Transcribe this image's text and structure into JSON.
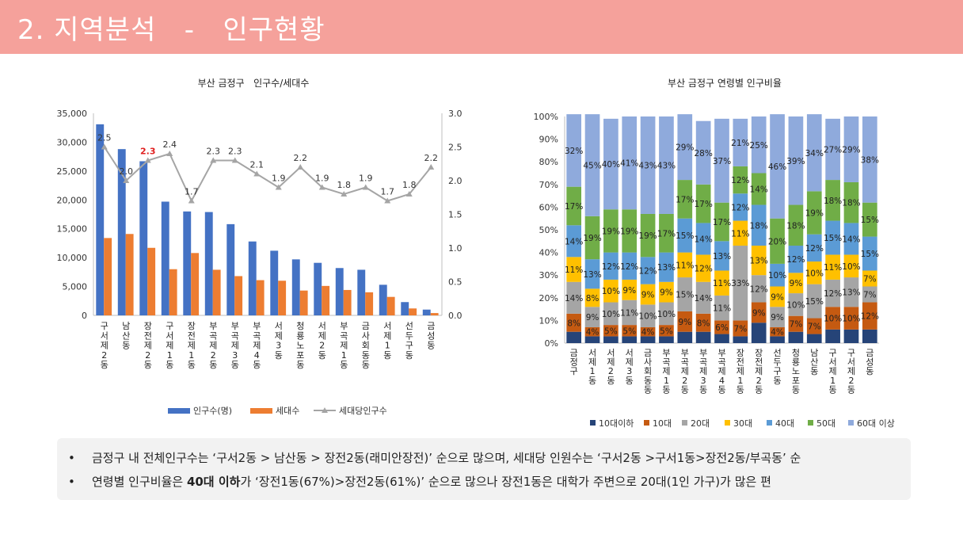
{
  "header": {
    "title": "2. 지역분석   -   인구현황"
  },
  "charts": {
    "left_title": "부산 금정구   인구수/세대수",
    "right_title": "부산 금정구 연령별 인구비율"
  },
  "chart_data": [
    {
      "type": "bar",
      "title": "부산 금정구   인구수/세대수",
      "categories": [
        "구서제2동",
        "남산동",
        "장전제2동",
        "구서제1동",
        "장전제1동",
        "부곡제2동",
        "부곡제3동",
        "부곡제4동",
        "서제3동",
        "청룡노포동",
        "서제2동",
        "부곡제1동",
        "금사회동동",
        "서제1동",
        "선두구동",
        "금성동"
      ],
      "series": [
        {
          "name": "인구수(명)",
          "axis": "left",
          "color": "#4472c4",
          "values": [
            33100,
            28800,
            26700,
            19700,
            18000,
            17900,
            15800,
            12800,
            11200,
            9700,
            9100,
            8200,
            7900,
            5300,
            2300,
            1000
          ]
        },
        {
          "name": "세대수",
          "axis": "left",
          "color": "#ed7d31",
          "values": [
            13400,
            14100,
            11700,
            8000,
            10800,
            7900,
            6800,
            6100,
            6000,
            4300,
            5100,
            4400,
            4000,
            3200,
            1200,
            400
          ]
        },
        {
          "name": "세대당인구수",
          "axis": "right",
          "type": "line",
          "color": "#a5a5a5",
          "values": [
            2.5,
            2.0,
            2.3,
            2.4,
            1.7,
            2.3,
            2.3,
            2.1,
            1.9,
            2.2,
            1.9,
            1.8,
            1.9,
            1.7,
            1.8,
            2.2
          ]
        }
      ],
      "line_labels": [
        "2.5",
        "2.0",
        "2.3",
        "2.4",
        "1.7",
        "2.3",
        "2.3",
        "2.1",
        "1.9",
        "2.2",
        "1.9",
        "1.8",
        "1.9",
        "1.7",
        "1.8",
        "2.2"
      ],
      "highlight_label_index": 2,
      "highlight_color": "#e02020",
      "ylim_left": [
        0,
        35000
      ],
      "yticks_left": [
        "0",
        "5,000",
        "10,000",
        "15,000",
        "20,000",
        "25,000",
        "30,000",
        "35,000"
      ],
      "ylim_right": [
        0,
        3.0
      ],
      "yticks_right": [
        "0.0",
        "0.5",
        "1.0",
        "1.5",
        "2.0",
        "2.5",
        "3.0"
      ],
      "legend_position": "bottom",
      "grid": false
    },
    {
      "type": "stacked-bar-100",
      "title": "부산 금정구 연령별 인구비율",
      "categories": [
        "금정구",
        "서제1동",
        "서제2동",
        "서제3동",
        "금사회동동",
        "부곡제1동",
        "부곡제2동",
        "부곡제3동",
        "부곡제4동",
        "장전제1동",
        "장전제2동",
        "선두구동",
        "청룡노포동",
        "남산동",
        "구서제1동",
        "구서제2동",
        "금성동"
      ],
      "series": [
        {
          "name": "10대이하",
          "color": "#264478",
          "values": [
            5,
            3,
            3,
            3,
            3,
            3,
            5,
            5,
            4,
            3,
            9,
            3,
            5,
            4,
            6,
            6,
            6
          ]
        },
        {
          "name": "10대",
          "color": "#c55a11",
          "values": [
            8,
            4,
            5,
            5,
            4,
            5,
            9,
            8,
            6,
            7,
            9,
            4,
            7,
            7,
            10,
            10,
            12
          ]
        },
        {
          "name": "20대",
          "color": "#a5a5a5",
          "values": [
            14,
            9,
            10,
            11,
            10,
            10,
            15,
            14,
            11,
            33,
            12,
            9,
            10,
            15,
            12,
            13,
            7
          ]
        },
        {
          "name": "30대",
          "color": "#ffc000",
          "values": [
            11,
            8,
            10,
            9,
            9,
            9,
            11,
            12,
            11,
            11,
            13,
            9,
            9,
            10,
            11,
            10,
            7
          ]
        },
        {
          "name": "40대",
          "color": "#5b9bd5",
          "values": [
            14,
            13,
            12,
            12,
            12,
            13,
            15,
            14,
            13,
            12,
            18,
            10,
            12,
            12,
            15,
            14,
            15
          ]
        },
        {
          "name": "50대",
          "color": "#70ad47",
          "values": [
            17,
            19,
            19,
            19,
            19,
            17,
            17,
            17,
            17,
            12,
            14,
            20,
            18,
            19,
            18,
            18,
            15
          ]
        },
        {
          "name": "60대 이상",
          "color": "#8faadc",
          "values": [
            32,
            45,
            40,
            41,
            43,
            43,
            29,
            28,
            37,
            21,
            25,
            46,
            39,
            34,
            27,
            29,
            38
          ]
        }
      ],
      "ylim": [
        0,
        100
      ],
      "yticks": [
        "0%",
        "10%",
        "20%",
        "30%",
        "40%",
        "50%",
        "60%",
        "70%",
        "80%",
        "90%",
        "100%"
      ],
      "legend_position": "bottom",
      "grid": false
    }
  ],
  "notes": [
    {
      "bullet": "•",
      "text": "금정구 내 전체인구수는 ‘구서2동 > 남산동 > 장전2동(래미안장전)’ 순으로 많으며, 세대당 인원수는 ‘구서2동 >구서1동>장전2동/부곡동’ 순"
    },
    {
      "bullet": "•",
      "pre": "연령별 인구비율은 ",
      "bold": "40대 이하",
      "post": "가 ‘장전1동(67%)>장전2동(61%)’ 순으로 많으나 장전1동은 대학가 주변으로 20대(1인 가구)가 많은 편"
    }
  ]
}
